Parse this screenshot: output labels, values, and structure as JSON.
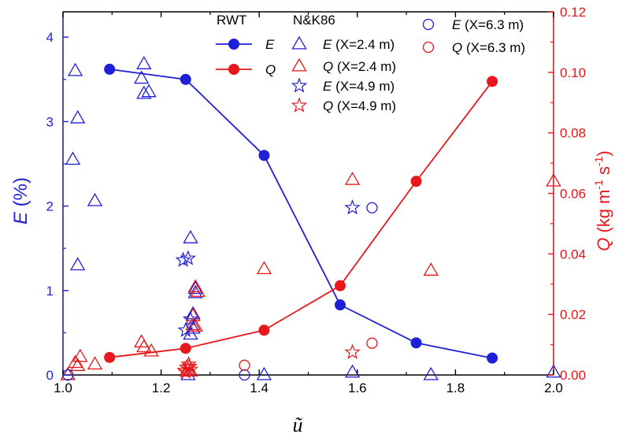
{
  "chart_data": {
    "type": "scatter",
    "x_axis": {
      "label": "ũ",
      "range": [
        1.0,
        2.0
      ],
      "ticks": [
        "1.0",
        "1.2",
        "1.4",
        "1.6",
        "1.8",
        "2.0"
      ]
    },
    "y_left": {
      "label_italic": "E",
      "label_unit": " (%)",
      "range": [
        0,
        4.3
      ],
      "ticks": [
        "0",
        "1",
        "2",
        "3",
        "4"
      ],
      "color": "#1f1fd6"
    },
    "y_right": {
      "label_italic": "Q",
      "label_unit": " (kg m",
      "label_exp1": "-1",
      "label_mid": " s",
      "label_exp2": "-1",
      "label_end": ")",
      "range": [
        0,
        0.12
      ],
      "ticks": [
        "0.00",
        "0.02",
        "0.04",
        "0.06",
        "0.08",
        "0.10",
        "0.12"
      ],
      "color": "#e8171b"
    },
    "legend": {
      "group1_title": "RWT",
      "group2_title": "N&K86",
      "entries": [
        {
          "symbol": "E",
          "suffix": ""
        },
        {
          "symbol": "Q",
          "suffix": ""
        },
        {
          "symbol": "E",
          "suffix": " (X=2.4 m)"
        },
        {
          "symbol": "Q",
          "suffix": " (X=2.4 m)"
        },
        {
          "symbol": "E",
          "suffix": " (X=4.9 m)"
        },
        {
          "symbol": "Q",
          "suffix": " (X=4.9 m)"
        },
        {
          "symbol": "E",
          "suffix": " (X=6.3 m)"
        },
        {
          "symbol": "Q",
          "suffix": " (X=6.3 m)"
        }
      ]
    },
    "series": [
      {
        "name": "RWT E",
        "axis": "left",
        "marker": "filled-circle",
        "line": true,
        "color": "#1f1fd6",
        "x": [
          1.095,
          1.25,
          1.41,
          1.565,
          1.72,
          1.875
        ],
        "y": [
          3.62,
          3.5,
          2.6,
          0.83,
          0.38,
          0.2
        ]
      },
      {
        "name": "RWT Q",
        "axis": "right",
        "marker": "filled-circle",
        "line": true,
        "color": "#e8171b",
        "x": [
          1.095,
          1.25,
          1.41,
          1.565,
          1.72,
          1.875
        ],
        "y": [
          0.0058,
          0.0088,
          0.0148,
          0.0295,
          0.064,
          0.097
        ]
      },
      {
        "name": "E (X=2.4 m)",
        "axis": "left",
        "marker": "open-triangle",
        "line": false,
        "color": "#1f1fd6",
        "x": [
          1.01,
          1.02,
          1.025,
          1.03,
          1.03,
          1.065,
          1.16,
          1.165,
          1.165,
          1.175,
          1.26,
          1.265,
          1.265,
          1.27,
          1.27,
          1.26,
          1.255,
          1.41,
          1.59,
          1.75,
          2.0
        ],
        "y": [
          0.0,
          2.55,
          3.6,
          3.04,
          1.3,
          2.06,
          3.51,
          3.68,
          3.33,
          3.35,
          1.62,
          0.72,
          0.55,
          0.97,
          1.02,
          0.48,
          0.0,
          0.0,
          0.03,
          0.0,
          0.03
        ]
      },
      {
        "name": "Q (X=2.4 m)",
        "axis": "right",
        "marker": "open-triangle",
        "line": false,
        "color": "#e8171b",
        "x": [
          1.01,
          1.025,
          1.03,
          1.035,
          1.065,
          1.16,
          1.165,
          1.18,
          1.255,
          1.26,
          1.265,
          1.265,
          1.27,
          1.27,
          1.275,
          1.41,
          1.59,
          1.75,
          2.0
        ],
        "y": [
          0.0,
          0.004,
          0.003,
          0.006,
          0.0035,
          0.0108,
          0.0092,
          0.0078,
          0.0015,
          0.0012,
          0.0195,
          0.0165,
          0.016,
          0.029,
          0.0275,
          0.035,
          0.0645,
          0.0345,
          0.064
        ]
      },
      {
        "name": "E (X=4.9 m)",
        "axis": "left",
        "marker": "open-star",
        "line": false,
        "color": "#1f1fd6",
        "x": [
          1.245,
          1.255,
          1.25,
          1.26,
          1.59
        ],
        "y": [
          1.36,
          1.38,
          0.53,
          0.66,
          1.98
        ]
      },
      {
        "name": "Q (X=4.9 m)",
        "axis": "right",
        "marker": "open-star",
        "line": false,
        "color": "#e8171b",
        "x": [
          1.248,
          1.252,
          1.256,
          1.26,
          1.25,
          1.258,
          1.59
        ],
        "y": [
          0.0015,
          0.0025,
          0.0035,
          0.0018,
          0.001,
          0.0028,
          0.0075
        ]
      },
      {
        "name": "E (X=6.3 m)",
        "axis": "left",
        "marker": "open-circle",
        "line": false,
        "color": "#1f1fd6",
        "x": [
          1.01,
          1.37,
          1.63
        ],
        "y": [
          0.0,
          0.0,
          1.98
        ]
      },
      {
        "name": "Q (X=6.3 m)",
        "axis": "right",
        "marker": "open-circle",
        "line": false,
        "color": "#e8171b",
        "x": [
          1.37,
          1.63
        ],
        "y": [
          0.0032,
          0.0105
        ]
      }
    ]
  }
}
